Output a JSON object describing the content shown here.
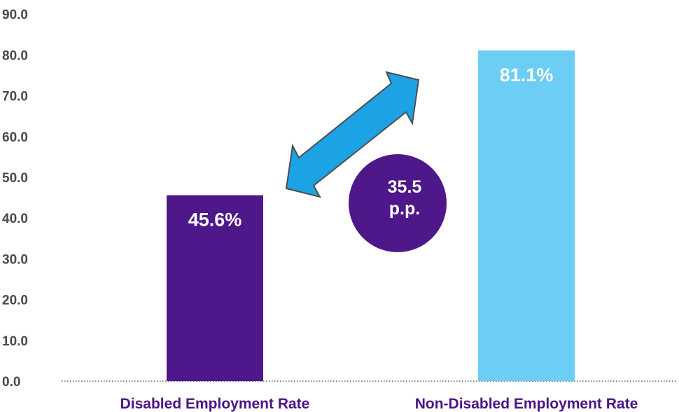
{
  "chart_data": {
    "type": "bar",
    "categories": [
      "Disabled Employment Rate",
      "Non-Disabled Employment Rate"
    ],
    "values": [
      45.6,
      81.1
    ],
    "value_labels": [
      "45.6%",
      "81.1%"
    ],
    "ylim": [
      0,
      90
    ],
    "yticks": [
      "0.0",
      "10.0",
      "20.0",
      "30.0",
      "40.0",
      "50.0",
      "60.0",
      "70.0",
      "80.0",
      "90.0"
    ],
    "grid": false,
    "colors": [
      "#4e178a",
      "#6ccef5"
    ],
    "annotation": {
      "lines": [
        "35.5",
        "p.p."
      ],
      "circle_color": "#4e178a",
      "arrow_color": "#1ba3e6",
      "arrow_icon": "double-headed-arrow-icon"
    }
  }
}
